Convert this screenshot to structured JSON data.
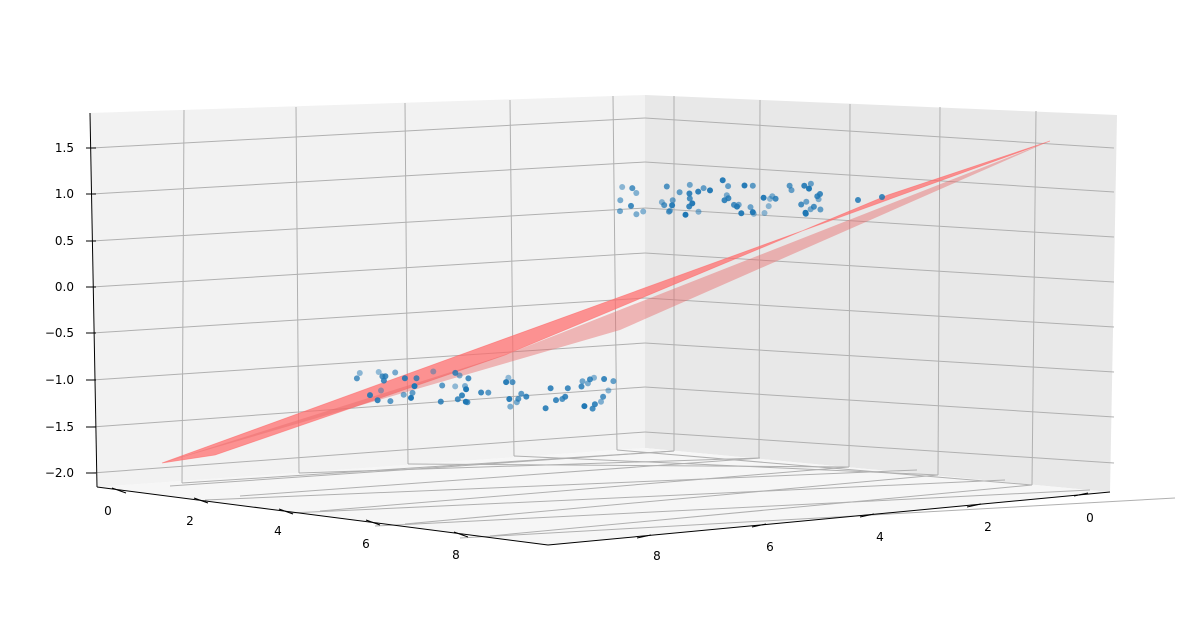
{
  "chart_data": {
    "type": "scatter3d_with_plane",
    "title": "",
    "zlabel": "",
    "xlabel": "",
    "ylabel": "",
    "z_ticks": [
      "1.5",
      "1.0",
      "0.5",
      "0.0",
      "−0.5",
      "−1.0",
      "−1.5",
      "−2.0"
    ],
    "x_ticks_left": [
      "0",
      "2",
      "4",
      "6",
      "8"
    ],
    "y_ticks_right": [
      "8",
      "6",
      "4",
      "2",
      "0"
    ],
    "zlim": [
      -2.0,
      1.5
    ],
    "grid": true,
    "plane_color": "#ff6b6b",
    "point_color": "#1f77b4",
    "pane_color": "#f2f2f2",
    "clusters": [
      {
        "name": "",
        "z_center": 1.0,
        "count": 60
      },
      {
        "name": "",
        "z_center": -1.0,
        "count": 60
      }
    ]
  }
}
